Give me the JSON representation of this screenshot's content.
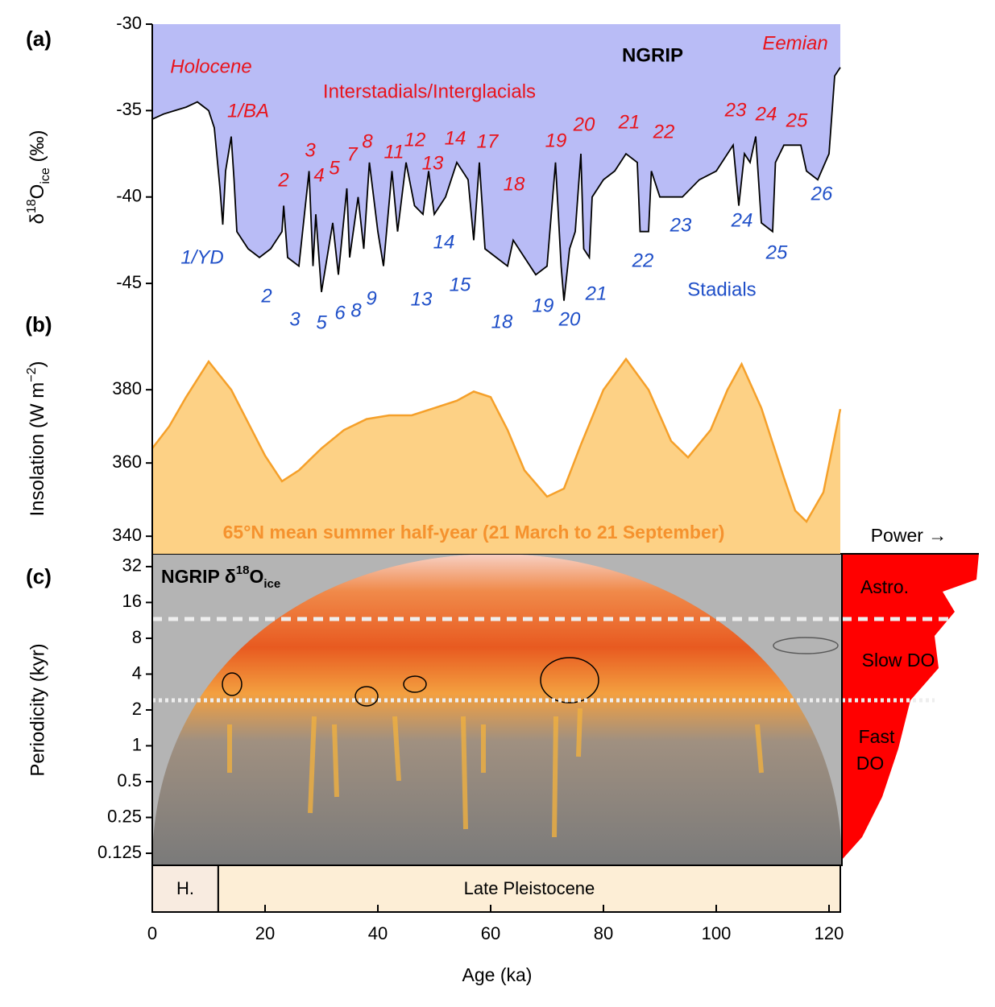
{
  "chart_data": [
    {
      "type": "line",
      "panel_label": "(a)",
      "y_label": {
        "prefix": "δ",
        "sup": "18",
        "main": "O",
        "sub": "ice",
        "unit": " (‰)"
      },
      "name": "NGRIP",
      "color": "#000000",
      "fill_color": "#b9bcf6",
      "x": [
        0,
        2,
        4,
        6,
        8,
        10,
        11,
        12,
        12.5,
        13,
        14,
        14.5,
        15,
        17,
        19,
        21,
        23,
        23.3,
        24,
        26,
        27.8,
        28.5,
        29,
        30,
        32,
        33,
        34.5,
        35,
        36.5,
        37.5,
        38.5,
        40,
        41,
        42.5,
        43.5,
        45,
        46.5,
        48,
        49,
        50,
        52,
        54,
        56,
        57,
        58,
        59,
        61,
        63,
        64,
        66,
        68,
        70,
        71.5,
        72.5,
        73,
        74,
        75,
        76,
        76.5,
        77.5,
        78,
        80,
        82,
        84,
        86,
        86.5,
        88,
        88.5,
        90,
        94,
        97,
        100,
        103,
        104,
        105,
        106,
        107,
        108,
        110,
        110.5,
        112,
        115,
        116,
        118,
        120,
        121,
        122
      ],
      "values": [
        -35.5,
        -35.2,
        -35.0,
        -34.8,
        -34.5,
        -35.0,
        -36.0,
        -39.5,
        -41.6,
        -38.5,
        -36.5,
        -39,
        -42,
        -43,
        -43.5,
        -43,
        -42,
        -40.5,
        -43.5,
        -44,
        -38.5,
        -44,
        -41,
        -45.5,
        -41.5,
        -44.5,
        -39.5,
        -43.5,
        -40,
        -43,
        -38,
        -42,
        -44,
        -38.5,
        -42,
        -38,
        -40.5,
        -41,
        -38.5,
        -41,
        -40,
        -38,
        -39,
        -42.5,
        -38,
        -43,
        -43.5,
        -44,
        -42.5,
        -43.5,
        -44.5,
        -44,
        -38,
        -44,
        -46,
        -43,
        -42,
        -37.5,
        -43,
        -43.5,
        -40,
        -39,
        -38.5,
        -37.5,
        -38,
        -42,
        -42,
        -38.5,
        -40,
        -40,
        -39,
        -38.5,
        -37,
        -40.5,
        -37.5,
        -38,
        -36.5,
        -41.5,
        -42,
        -38,
        -37,
        -37,
        -38.5,
        -39,
        -37.5,
        -33,
        -32.5
      ],
      "ylim": [
        -46.3,
        -30
      ],
      "yticks": [
        -45,
        -40,
        -35,
        -30
      ],
      "annotations": {
        "interstadials": [
          "Holocene",
          "Eemian",
          "1/BA",
          "2",
          "3",
          "4",
          "5",
          "7",
          "8",
          "11",
          "12",
          "13",
          "14",
          "17",
          "18",
          "19",
          "20",
          "21",
          "22",
          "23",
          "24",
          "25",
          "Interstadials/Interglacials"
        ],
        "stadials": [
          "1/YD",
          "2",
          "3",
          "5",
          "6",
          "8",
          "9",
          "13",
          "14",
          "15",
          "18",
          "19",
          "20",
          "21",
          "22",
          "23",
          "24",
          "25",
          "26",
          "Stadials"
        ],
        "record": "NGRIP"
      }
    },
    {
      "type": "area",
      "panel_label": "(b)",
      "y_label": {
        "main": "Insolation (W m",
        "sup": "−2",
        "unit": ")"
      },
      "color": "#f5a02a",
      "fill_color": "#fdd185",
      "x": [
        0,
        3,
        6,
        10,
        14,
        18,
        20,
        23,
        26,
        30,
        34,
        38,
        42,
        46,
        50,
        54,
        57,
        60,
        63,
        66,
        70,
        73,
        76,
        80,
        84,
        88,
        92,
        95,
        99,
        102,
        104.5,
        108,
        112,
        114,
        116,
        119,
        122
      ],
      "values": [
        364,
        370,
        378,
        387.7,
        380,
        368,
        362,
        355,
        358,
        364,
        369,
        372,
        373,
        373,
        375,
        377,
        379.5,
        378,
        369,
        358,
        350.8,
        353,
        365,
        380,
        388.4,
        380,
        366,
        361.5,
        369,
        380,
        387,
        375,
        356,
        347,
        344,
        352,
        374.7
      ],
      "ylim": [
        335.2,
        398.5
      ],
      "yticks": [
        340,
        360,
        380
      ],
      "annotation": "65°N mean summer half-year (21 March to 21 September)"
    },
    {
      "type": "wavelet",
      "panel_label": "(c)",
      "y_label": "Periodicity (kyr)",
      "title": {
        "main": "NGRIP δ",
        "sup": "18",
        "mid": "O",
        "sub": "ice"
      },
      "log_scale": 2,
      "ylim": [
        0.099,
        41
      ],
      "yticks": [
        0.125,
        0.25,
        0.5,
        1,
        2,
        4,
        8,
        16,
        32
      ],
      "bands": [
        "Astro.",
        "Slow DO",
        "Fast",
        "DO"
      ],
      "power_label": "Power →",
      "xlim": [
        0,
        122
      ],
      "xticks": [
        0,
        20,
        40,
        60,
        80,
        100,
        120
      ],
      "x_label": "Age (ka)",
      "epochs": [
        {
          "name": "H.",
          "start": 0,
          "end": 11.7
        },
        {
          "name": "Late Pleistocene",
          "start": 11.7,
          "end": 122
        }
      ]
    }
  ]
}
